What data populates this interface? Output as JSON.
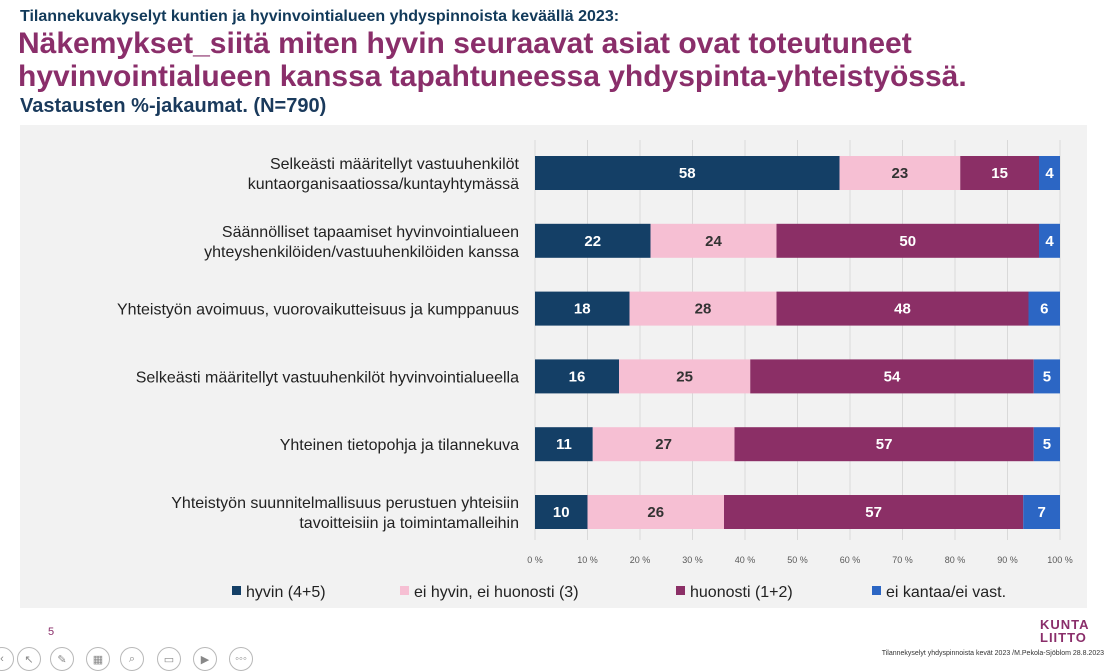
{
  "header": {
    "supertitle": "Tilannekuvakyselyt kuntien ja hyvinvointialueen yhdyspinnoista keväällä 2023:",
    "title_line1": "Näkemykset_siitä miten hyvin seuraavat asiat ovat toteutuneet",
    "title_line2": "hyvinvointialueen kanssa tapahtuneessa yhdyspinta-yhteistyössä.",
    "subtitle": "Vastausten %-jakaumat. (N=790)"
  },
  "chart_data": {
    "type": "bar",
    "orientation": "horizontal",
    "stacked": true,
    "categories": [
      [
        "Selkeästi määritellyt vastuuhenkilöt",
        "kuntaorganisaatiossa/kuntayhtymässä"
      ],
      [
        "Säännölliset tapaamiset hyvinvointialueen",
        "yhteyshenkilöiden/vastuuhenkilöiden kanssa"
      ],
      [
        "Yhteistyön avoimuus, vuorovaikutteisuus ja kumppanuus"
      ],
      [
        "Selkeästi määritellyt vastuuhenkilöt hyvinvointialueella"
      ],
      [
        "Yhteinen tietopohja ja tilannekuva"
      ],
      [
        "Yhteistyön suunnitelmallisuus perustuen yhteisiin",
        "tavoitteisiin ja toimintamalleihin"
      ]
    ],
    "series": [
      {
        "name": "hyvin (4+5)",
        "color": "#143f66",
        "label_color": "#ffffff",
        "values": [
          58,
          22,
          18,
          16,
          11,
          10
        ]
      },
      {
        "name": "ei hyvin, ei huonosti (3)",
        "color": "#f6bfd3",
        "label_color": "#333333",
        "values": [
          23,
          24,
          28,
          25,
          27,
          26
        ]
      },
      {
        "name": "huonosti (1+2)",
        "color": "#8b2f66",
        "label_color": "#ffffff",
        "values": [
          15,
          50,
          48,
          54,
          57,
          57
        ]
      },
      {
        "name": "ei kantaa/ei vast.",
        "color": "#2c66c4",
        "label_color": "#ffffff",
        "values": [
          4,
          4,
          6,
          5,
          5,
          7
        ]
      }
    ],
    "xlim": [
      0,
      100
    ],
    "xticks": [
      "0 %",
      "10 %",
      "20 %",
      "30 %",
      "40 %",
      "50 %",
      "60 %",
      "70 %",
      "80 %",
      "90 %",
      "100 %"
    ],
    "legend_position": "bottom",
    "grid": true
  },
  "footer": {
    "page_number": "5",
    "source": "Tilannekyselyt yhdyspinnoista kevät 2023 /M.Pekola-Sjöblom 28.8.2023",
    "logo_line1": "KUNTA",
    "logo_line2": "LIITTO"
  },
  "toolbar": {
    "icons": [
      "previous-slide-icon",
      "pointer-icon",
      "pen-icon",
      "slides-grid-icon",
      "zoom-icon",
      "subtitles-icon",
      "camera-icon",
      "more-options-icon"
    ],
    "more_label": "◦◦◦"
  }
}
